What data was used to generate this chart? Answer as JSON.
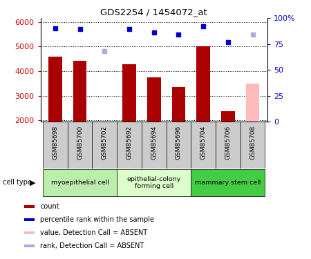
{
  "title": "GDS2254 / 1454072_at",
  "samples": [
    "GSM85698",
    "GSM85700",
    "GSM85702",
    "GSM85692",
    "GSM85694",
    "GSM85696",
    "GSM85704",
    "GSM85706",
    "GSM85708"
  ],
  "counts": [
    4580,
    4430,
    null,
    4270,
    3740,
    3350,
    5000,
    2380,
    null
  ],
  "counts_absent": [
    null,
    null,
    null,
    null,
    null,
    null,
    null,
    null,
    3500
  ],
  "ranks": [
    5750,
    5700,
    null,
    5700,
    5580,
    5490,
    5810,
    5180,
    null
  ],
  "ranks_absent": [
    null,
    null,
    4820,
    null,
    null,
    null,
    null,
    null,
    5490
  ],
  "bar_color_present": "#aa0000",
  "bar_color_absent": "#ffbbbb",
  "marker_color_present": "#0000cc",
  "marker_color_absent": "#aaaadd",
  "ylim_left": [
    1950,
    6150
  ],
  "yticks_left": [
    2000,
    3000,
    4000,
    5000,
    6000
  ],
  "yticks_right": [
    0,
    25,
    50,
    75,
    100
  ],
  "yticklabels_right": [
    "0",
    "25",
    "50",
    "75",
    "100%"
  ],
  "cell_groups": [
    {
      "label": "myoepithelial cell",
      "indices": [
        0,
        1,
        2
      ],
      "color": "#bbeeaa"
    },
    {
      "label": "epithelial-colony\nforming cell",
      "indices": [
        3,
        4,
        5
      ],
      "color": "#ddffcc"
    },
    {
      "label": "mammary stem cell",
      "indices": [
        6,
        7,
        8
      ],
      "color": "#44cc44"
    }
  ],
  "cell_type_label": "cell type",
  "legend_items": [
    {
      "color": "#aa0000",
      "label": "count"
    },
    {
      "color": "#0000cc",
      "label": "percentile rank within the sample"
    },
    {
      "color": "#ffbbbb",
      "label": "value, Detection Call = ABSENT"
    },
    {
      "color": "#aaaadd",
      "label": "rank, Detection Call = ABSENT"
    }
  ],
  "bg_color": "#ffffff",
  "tick_label_color_left": "#cc0000",
  "tick_label_color_right": "#0000cc",
  "sample_box_color": "#cccccc",
  "bar_width": 0.55
}
